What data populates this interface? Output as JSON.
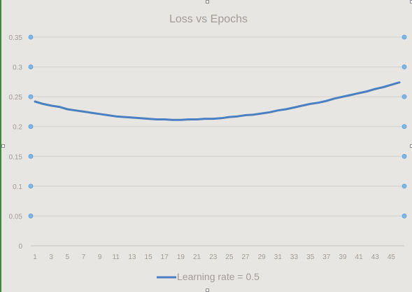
{
  "chart_data": {
    "type": "line",
    "title": "Loss vs Epochs",
    "xlabel": "",
    "ylabel": "",
    "ylim": [
      0,
      0.35
    ],
    "yticks": [
      0,
      0.05,
      0.1,
      0.15,
      0.2,
      0.25,
      0.3,
      0.35
    ],
    "ytick_labels": [
      "0",
      "0.05",
      "0.1",
      "0.15",
      "0.2",
      "0.25",
      "0.3",
      "0.35"
    ],
    "xtick_labels": [
      "1",
      "3",
      "5",
      "7",
      "9",
      "11",
      "13",
      "15",
      "17",
      "19",
      "21",
      "23",
      "25",
      "27",
      "29",
      "31",
      "33",
      "35",
      "37",
      "39",
      "41",
      "43",
      "45"
    ],
    "grid": true,
    "legend_position": "bottom",
    "series": [
      {
        "name": "Learning rate = 0.5",
        "color": "#4a7fc1",
        "x": [
          1,
          2,
          3,
          4,
          5,
          6,
          7,
          8,
          9,
          10,
          11,
          12,
          13,
          14,
          15,
          16,
          17,
          18,
          19,
          20,
          21,
          22,
          23,
          24,
          25,
          26,
          27,
          28,
          29,
          30,
          31,
          32,
          33,
          34,
          35,
          36,
          37,
          38,
          39,
          40,
          41,
          42,
          43,
          44,
          45,
          46
        ],
        "values": [
          0.242,
          0.238,
          0.235,
          0.233,
          0.229,
          0.227,
          0.225,
          0.223,
          0.221,
          0.219,
          0.217,
          0.216,
          0.215,
          0.214,
          0.213,
          0.212,
          0.212,
          0.211,
          0.211,
          0.212,
          0.212,
          0.213,
          0.213,
          0.214,
          0.216,
          0.217,
          0.219,
          0.22,
          0.222,
          0.224,
          0.227,
          0.229,
          0.232,
          0.235,
          0.238,
          0.24,
          0.243,
          0.247,
          0.25,
          0.253,
          0.256,
          0.259,
          0.263,
          0.266,
          0.27,
          0.274
        ]
      }
    ],
    "marker_color": "#7cb8ea"
  }
}
